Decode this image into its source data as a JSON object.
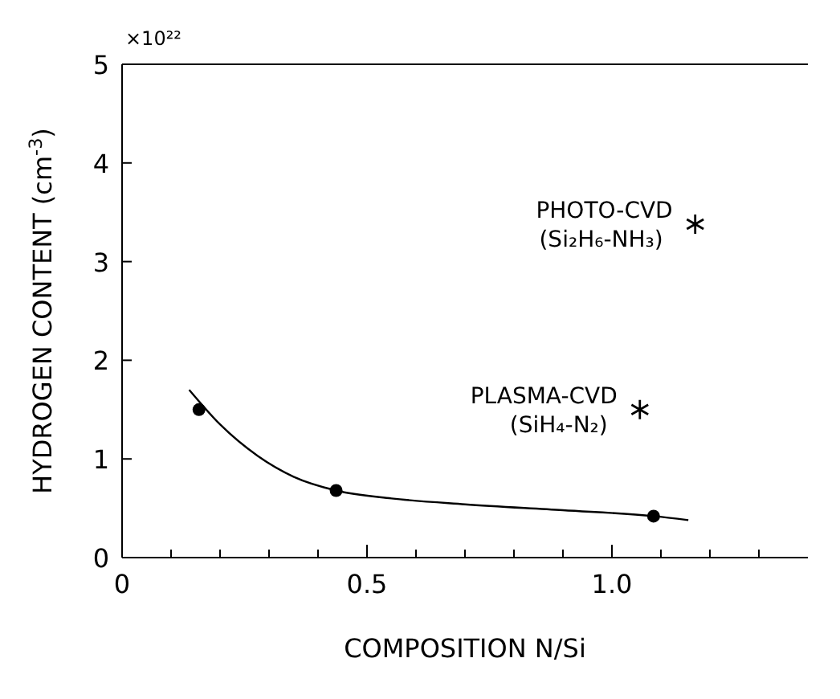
{
  "chart_data": {
    "type": "scatter",
    "xlabel": "COMPOSITION  N/Si",
    "ylabel": "HYDROGEN CONTENT (cm$^{-3}$)",
    "xlim": [
      0,
      1.4
    ],
    "ylim": [
      0,
      5
    ],
    "xticks": [
      0,
      {
        "value": 0.1,
        "label": null
      },
      {
        "value": 0.2,
        "label": null
      },
      {
        "value": 0.3,
        "label": null
      },
      {
        "value": 0.4,
        "label": null
      },
      0.5,
      {
        "value": 0.6,
        "label": null
      },
      {
        "value": 0.7,
        "label": null
      },
      {
        "value": 0.8,
        "label": null
      },
      {
        "value": 0.9,
        "label": null
      },
      {
        "value": 1.0,
        "label": "1.0"
      },
      {
        "value": 1.1,
        "label": null
      },
      {
        "value": 1.2,
        "label": null
      },
      {
        "value": 1.3,
        "label": null
      }
    ],
    "yticks": [
      0,
      1,
      2,
      3,
      4,
      5
    ],
    "grid": false,
    "series": [
      {
        "type": "line",
        "color": "#000000",
        "marker": "none",
        "line_style": "solid",
        "x": [
          0.137,
          0.2,
          0.277,
          0.35,
          0.437,
          0.55,
          0.7,
          0.9,
          1.085,
          1.156
        ],
        "values": [
          1.7,
          1.35,
          1.03,
          0.82,
          0.68,
          0.6,
          0.54,
          0.48,
          0.42,
          0.38
        ]
      },
      {
        "color": "#000000",
        "marker": "circle",
        "x": [
          0.157,
          0.437,
          1.085
        ],
        "values": [
          1.5,
          0.68,
          0.42
        ]
      },
      {
        "color": "#000000",
        "marker": "cross",
        "x": [
          1.17,
          1.057
        ],
        "values": [
          3.38,
          1.5
        ]
      }
    ],
    "annotations": [
      "×10²²",
      {
        "text": "PHOTO-CVD\n(Si₂H₆-NH₃)",
        "x": 1.17,
        "y": 3.38
      },
      {
        "text": "PLASMA-CVD\n(SiH₄-N₂)",
        "x": 1.057,
        "y": 1.5
      }
    ]
  }
}
